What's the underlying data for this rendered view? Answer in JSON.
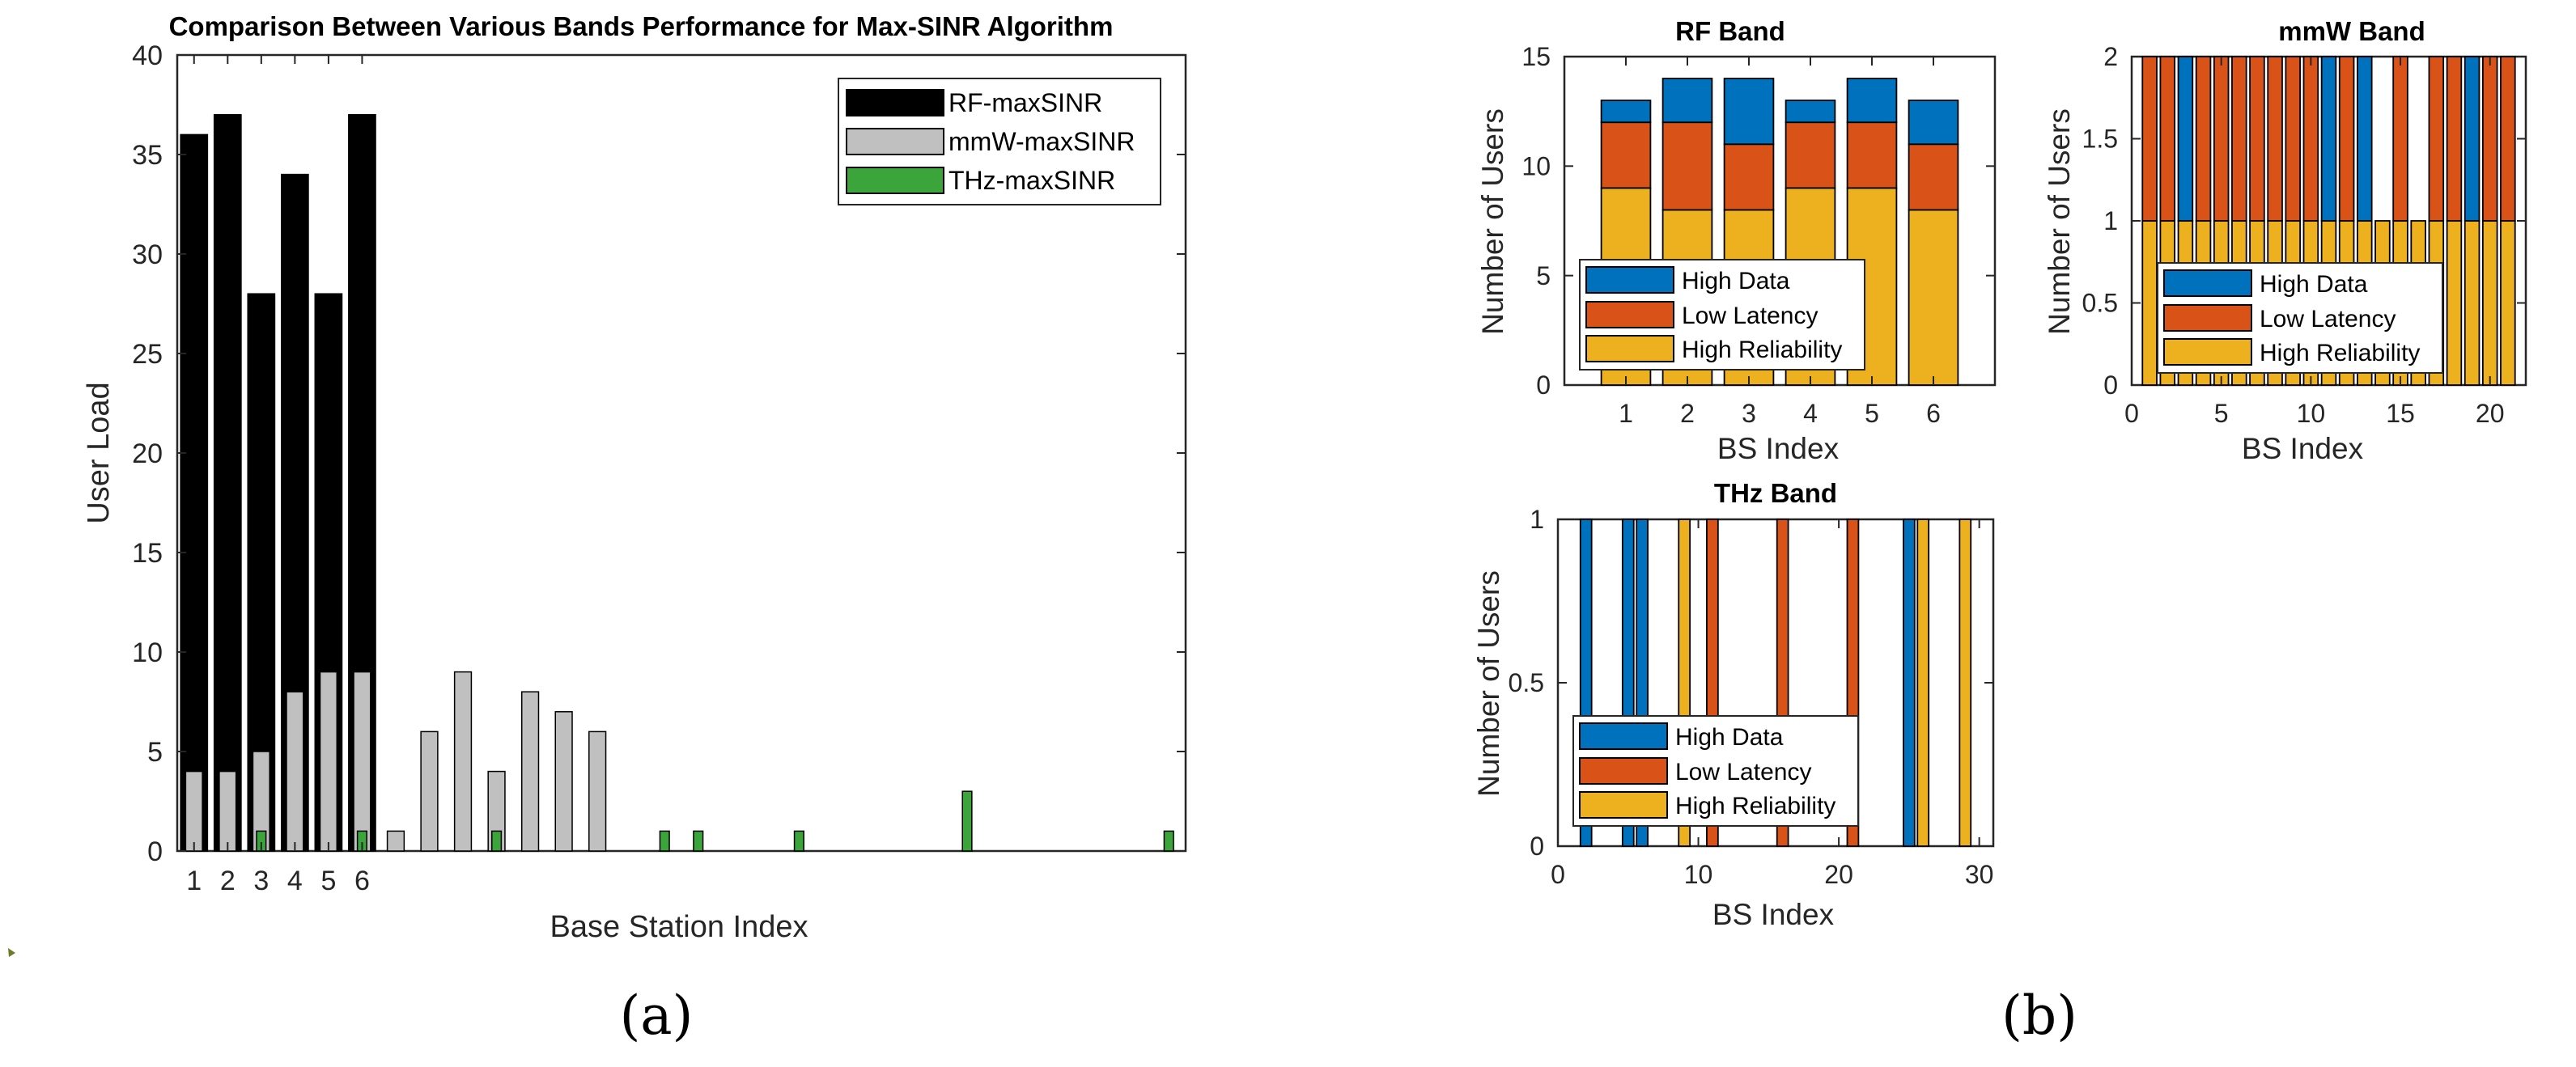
{
  "colors": {
    "rf": "#000000",
    "mmw": "#c0c0c0",
    "thz": "#3ba43b",
    "high_data": "#0072bd",
    "low_latency": "#d95319",
    "high_reliability": "#edb120",
    "axis": "#262626"
  },
  "captions": {
    "a": "(a)",
    "b": "(b)"
  },
  "chart_data": [
    {
      "id": "a",
      "type": "bar",
      "title": "Comparison Between Various Bands Performance for Max-SINR Algorithm",
      "xlabel": "Base Station Index",
      "ylabel": "User Load",
      "ylim": [
        0,
        40
      ],
      "yticks": [
        0,
        5,
        10,
        15,
        20,
        25,
        30,
        35,
        40
      ],
      "xticks": [
        1,
        2,
        3,
        4,
        5,
        6
      ],
      "xlim": [
        0.5,
        30.5
      ],
      "legend_location": "top-right",
      "series": [
        {
          "name": "RF-maxSINR",
          "color_key": "rf",
          "width": 0.8,
          "points": [
            [
              1,
              36
            ],
            [
              2,
              37
            ],
            [
              3,
              28
            ],
            [
              4,
              34
            ],
            [
              5,
              28
            ],
            [
              6,
              37
            ]
          ]
        },
        {
          "name": "mmW-maxSINR",
          "color_key": "mmw",
          "width": 0.5,
          "points": [
            [
              1,
              4
            ],
            [
              2,
              4
            ],
            [
              3,
              5
            ],
            [
              4,
              8
            ],
            [
              5,
              9
            ],
            [
              6,
              9
            ],
            [
              7,
              1
            ],
            [
              8,
              6
            ],
            [
              9,
              9
            ],
            [
              10,
              4
            ],
            [
              11,
              8
            ],
            [
              12,
              7
            ],
            [
              13,
              6
            ]
          ]
        },
        {
          "name": "THz-maxSINR",
          "color_key": "thz",
          "width": 0.28,
          "points": [
            [
              3,
              1
            ],
            [
              6,
              1
            ],
            [
              10,
              1
            ],
            [
              15,
              1
            ],
            [
              16,
              1
            ],
            [
              19,
              1
            ],
            [
              24,
              3
            ],
            [
              30,
              1
            ]
          ]
        }
      ]
    },
    {
      "id": "rf",
      "type": "bar",
      "stacked": true,
      "title": "RF Band",
      "xlabel": "BS Index",
      "ylabel": "Number of Users",
      "xlim": [
        0,
        7
      ],
      "ylim": [
        0,
        15
      ],
      "xticks": [
        1,
        2,
        3,
        4,
        5,
        6
      ],
      "yticks": [
        0,
        5,
        10,
        15
      ],
      "bar_width": 0.8,
      "legend_location": "bottom-left",
      "series_labels": [
        "High Data",
        "Low Latency",
        "High Reliability"
      ],
      "x": [
        1,
        2,
        3,
        4,
        5,
        6
      ],
      "high_reliability": [
        9,
        8,
        8,
        9,
        9,
        8
      ],
      "low_latency": [
        3,
        4,
        3,
        3,
        3,
        3
      ],
      "high_data": [
        1,
        2,
        3,
        1,
        2,
        2
      ]
    },
    {
      "id": "mmw",
      "type": "bar",
      "stacked": true,
      "title": "mmW Band",
      "xlabel": "BS Index",
      "ylabel": "Number of Users",
      "xlim": [
        0,
        22
      ],
      "ylim": [
        0,
        2
      ],
      "xticks": [
        0,
        5,
        10,
        15,
        20
      ],
      "yticks": [
        0,
        0.5,
        1,
        1.5,
        2
      ],
      "bar_width": 0.8,
      "legend_location": "bottom-left",
      "series_labels": [
        "High Data",
        "Low Latency",
        "High Reliability"
      ],
      "x": [
        1,
        2,
        3,
        4,
        5,
        6,
        7,
        8,
        9,
        10,
        11,
        12,
        13,
        14,
        15,
        16,
        17,
        18,
        19,
        20,
        21
      ],
      "high_reliability": [
        1,
        1,
        1,
        1,
        1,
        1,
        1,
        1,
        1,
        1,
        1,
        1,
        1,
        1,
        1,
        1,
        1,
        1,
        1,
        1,
        1
      ],
      "low_latency": [
        1,
        1,
        0,
        1,
        1,
        1,
        1,
        1,
        1,
        1,
        0,
        1,
        0,
        0,
        1,
        0,
        1,
        1,
        0,
        1,
        1
      ],
      "high_data": [
        0,
        0,
        1,
        0,
        0,
        0,
        0,
        0,
        0,
        0,
        1,
        0,
        1,
        0,
        0,
        0,
        0,
        0,
        1,
        0,
        0
      ]
    },
    {
      "id": "thz",
      "type": "bar",
      "stacked": true,
      "title": "THz Band",
      "xlabel": "BS Index",
      "ylabel": "Number of Users",
      "xlim": [
        0,
        31
      ],
      "ylim": [
        0,
        1
      ],
      "xticks": [
        0,
        10,
        20,
        30
      ],
      "yticks": [
        0,
        0.5,
        1
      ],
      "bar_width": 0.8,
      "legend_location": "bottom-left",
      "series_labels": [
        "High Data",
        "Low Latency",
        "High Reliability"
      ],
      "x": [
        2,
        5,
        6,
        9,
        11,
        16,
        21,
        25,
        26,
        29
      ],
      "high_reliability": [
        0,
        0,
        0,
        1,
        0,
        0,
        0,
        0,
        1,
        1
      ],
      "low_latency": [
        0,
        0,
        0,
        0,
        1,
        1,
        1,
        0,
        0,
        0
      ],
      "high_data": [
        1,
        1,
        1,
        0,
        0,
        0,
        0,
        1,
        0,
        0
      ]
    }
  ]
}
